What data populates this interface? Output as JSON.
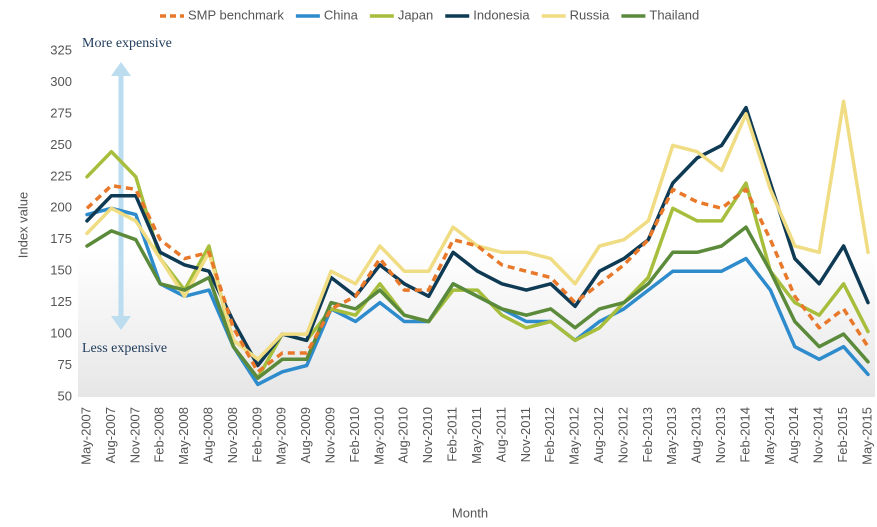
{
  "chart_data": {
    "type": "line",
    "x_label": "Month",
    "y_label": "Index value",
    "annotations": [
      "More expensive",
      "Less expensive"
    ],
    "categories": [
      "May-2007",
      "Aug-2007",
      "Nov-2007",
      "Feb-2008",
      "May-2008",
      "Aug-2008",
      "Nov-2008",
      "Feb-2009",
      "May-2009",
      "Aug-2009",
      "Nov-2009",
      "Feb-2010",
      "May-2010",
      "Aug-2010",
      "Nov-2010",
      "Feb-2011",
      "May-2011",
      "Aug-2011",
      "Nov-2011",
      "Feb-2012",
      "May-2012",
      "Aug-2012",
      "Nov-2012",
      "Feb-2013",
      "May-2013",
      "Aug-2013",
      "Nov-2013",
      "Feb-2014",
      "May-2014",
      "Aug-2014",
      "Nov-2014",
      "Feb-2015",
      "May-2015"
    ],
    "ylim": [
      50,
      325
    ],
    "yticks": [
      50,
      75,
      100,
      125,
      150,
      175,
      200,
      225,
      250,
      275,
      300,
      325
    ],
    "grid": false,
    "legend": "top",
    "series": [
      {
        "name": "SMP benchmark",
        "color": "#e8782a",
        "style": "dashed",
        "values": [
          200,
          218,
          215,
          175,
          160,
          165,
          105,
          70,
          85,
          85,
          120,
          130,
          160,
          135,
          135,
          175,
          170,
          155,
          150,
          145,
          125,
          140,
          155,
          175,
          215,
          205,
          200,
          215,
          175,
          130,
          105,
          120,
          90
        ]
      },
      {
        "name": "China",
        "color": "#2e8bcc",
        "values": [
          195,
          200,
          195,
          140,
          130,
          135,
          90,
          60,
          70,
          75,
          120,
          110,
          125,
          110,
          110,
          140,
          130,
          120,
          110,
          110,
          95,
          110,
          120,
          135,
          150,
          150,
          150,
          160,
          135,
          90,
          80,
          90,
          68
        ]
      },
      {
        "name": "Japan",
        "color": "#a6be3c",
        "values": [
          225,
          245,
          225,
          160,
          135,
          170,
          90,
          65,
          100,
          95,
          120,
          115,
          140,
          115,
          110,
          135,
          135,
          115,
          105,
          110,
          95,
          105,
          125,
          145,
          200,
          190,
          190,
          220,
          150,
          125,
          115,
          140,
          102
        ]
      },
      {
        "name": "Indonesia",
        "color": "#0e3a54",
        "values": [
          190,
          210,
          210,
          165,
          155,
          150,
          110,
          75,
          100,
          95,
          145,
          130,
          155,
          140,
          130,
          165,
          150,
          140,
          135,
          140,
          122,
          150,
          160,
          175,
          220,
          240,
          250,
          280,
          220,
          160,
          140,
          170,
          125
        ]
      },
      {
        "name": "Russia",
        "color": "#f0dc82",
        "values": [
          180,
          200,
          190,
          160,
          130,
          165,
          95,
          80,
          100,
          100,
          150,
          140,
          170,
          150,
          150,
          185,
          170,
          165,
          165,
          160,
          140,
          170,
          175,
          190,
          250,
          245,
          230,
          275,
          215,
          170,
          165,
          285,
          165
        ]
      },
      {
        "name": "Thailand",
        "color": "#5a8a3a",
        "values": [
          170,
          182,
          175,
          140,
          135,
          145,
          90,
          65,
          80,
          80,
          125,
          120,
          135,
          115,
          110,
          140,
          130,
          120,
          115,
          120,
          105,
          120,
          125,
          140,
          165,
          165,
          170,
          185,
          150,
          110,
          90,
          100,
          78
        ]
      }
    ]
  }
}
